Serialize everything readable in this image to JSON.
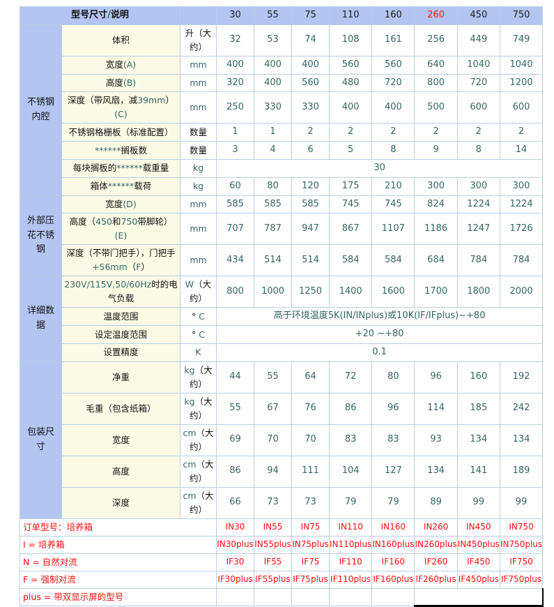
{
  "colors": {
    "header_bg": "#b3c5f0",
    "label_bg": "#fbfbe6",
    "grid": "#b9cfe4",
    "outer": "#97aec5",
    "value_text": "#336663",
    "label_text": "#111111",
    "red": "#ff1111",
    "selection_bg": "#c9d6d2",
    "selection_border": "#000000"
  },
  "header": {
    "title": "型号尺寸/说明",
    "models": [
      "30",
      "55",
      "75",
      "110",
      "160",
      "260",
      "450",
      "750"
    ],
    "highlight_model": "260"
  },
  "sections": [
    {
      "name": "不锈钢内腔",
      "rows": [
        {
          "label": "体积",
          "unit": "升（大约）",
          "values": [
            32,
            53,
            74,
            108,
            161,
            256,
            449,
            749
          ]
        },
        {
          "label": "宽度(A)",
          "unit": "mm",
          "values": [
            400,
            400,
            400,
            560,
            560,
            640,
            1040,
            1040
          ]
        },
        {
          "label": "高度(B)",
          "unit": "mm",
          "values": [
            320,
            400,
            560,
            480,
            720,
            800,
            720,
            1200
          ]
        },
        {
          "label": "深度（带风扇，减39mm）(C)",
          "unit": "mm",
          "values": [
            250,
            330,
            330,
            400,
            400,
            500,
            600,
            600
          ]
        },
        {
          "label": "不锈钢格栅板（标准配置）",
          "unit": "数量",
          "values": [
            1,
            1,
            2,
            2,
            2,
            2,
            2,
            2
          ]
        },
        {
          "label": "******搁板数",
          "unit": "数量",
          "values": [
            3,
            4,
            6,
            5,
            8,
            9,
            8,
            14
          ]
        },
        {
          "label": "每块搁板的******载重量",
          "unit": "kg",
          "merged": "30"
        },
        {
          "label": "箱体******载荷",
          "unit": "kg",
          "values": [
            60,
            80,
            120,
            175,
            210,
            300,
            300,
            300
          ]
        }
      ]
    },
    {
      "name": "外部压花不锈钢",
      "rows": [
        {
          "label": "宽度(D)",
          "unit": "mm",
          "values": [
            585,
            585,
            585,
            745,
            745,
            824,
            1224,
            1224
          ]
        },
        {
          "label": "高度（450和750带脚轮）(E)",
          "unit": "mm",
          "values": [
            707,
            787,
            947,
            867,
            1107,
            1186,
            1247,
            1726
          ]
        },
        {
          "label": "深度（不带门把手），门把手+56mm（F）",
          "unit": "mm",
          "values": [
            434,
            514,
            514,
            584,
            584,
            684,
            784,
            784
          ]
        }
      ]
    },
    {
      "name": "详细数据",
      "rows": [
        {
          "label": "230V/115V,50/60Hz时的电气负载",
          "unit": "W（大约）",
          "values": [
            800,
            1000,
            1250,
            1400,
            1600,
            1700,
            1800,
            2000
          ]
        },
        {
          "label": "温度范围",
          "unit": "° C",
          "merged": "高于环境温度5K(IN/INplus)或10K(IF/IFplus)~+80"
        },
        {
          "label": "设定温度范围",
          "unit": "° C",
          "merged": "+20 ~+80"
        },
        {
          "label": "设置精度",
          "unit": "K",
          "merged": "0.1"
        }
      ]
    },
    {
      "name": "包装尺寸",
      "rows": [
        {
          "label": "净重",
          "unit": "kg（大约）",
          "values": [
            44,
            55,
            64,
            72,
            80,
            96,
            160,
            192
          ]
        },
        {
          "label": "毛重（包含纸箱）",
          "unit": "kg（大约）",
          "values": [
            55,
            67,
            76,
            86,
            96,
            114,
            185,
            242
          ]
        },
        {
          "label": "宽度",
          "unit": "cm（大约）",
          "values": [
            69,
            70,
            70,
            83,
            83,
            93,
            134,
            134
          ]
        },
        {
          "label": "高度",
          "unit": "cm（大约）",
          "values": [
            86,
            94,
            111,
            104,
            127,
            134,
            141,
            189
          ]
        },
        {
          "label": "深度",
          "unit": "cm（大约）",
          "values": [
            66,
            73,
            73,
            79,
            79,
            89,
            99,
            99
          ]
        }
      ]
    }
  ],
  "footer": {
    "rows": [
      {
        "label": "订单型号：培养箱",
        "values": [
          "IN30",
          "IN55",
          "IN75",
          "IN110",
          "IN160",
          "IN260",
          "IN450",
          "IN750"
        ]
      },
      {
        "label": "I = 培养箱",
        "values": [
          "IN30plus",
          "IN55plus",
          "IN75plus",
          "IN110plus",
          "IN160plus",
          "IN260plus",
          "IN450plus",
          "IN750plus"
        ]
      },
      {
        "label": "N = 自然对流",
        "values": [
          "IF30",
          "IF55",
          "IF75",
          "IF110",
          "IF160",
          "IF260",
          "IF450",
          "IF750"
        ]
      },
      {
        "label": "F = 强制对流",
        "values": [
          "IF30plus",
          "IF55plus",
          "IF75plus",
          "IF110plus",
          "IF160plus",
          "IF260plus",
          "IF450plus",
          "IF750plus"
        ]
      },
      {
        "label": "plus = 带双显示屏的型号",
        "values": [],
        "selection": {
          "span": 3,
          "covers_models": [
            "260",
            "450",
            "750"
          ]
        }
      }
    ]
  }
}
